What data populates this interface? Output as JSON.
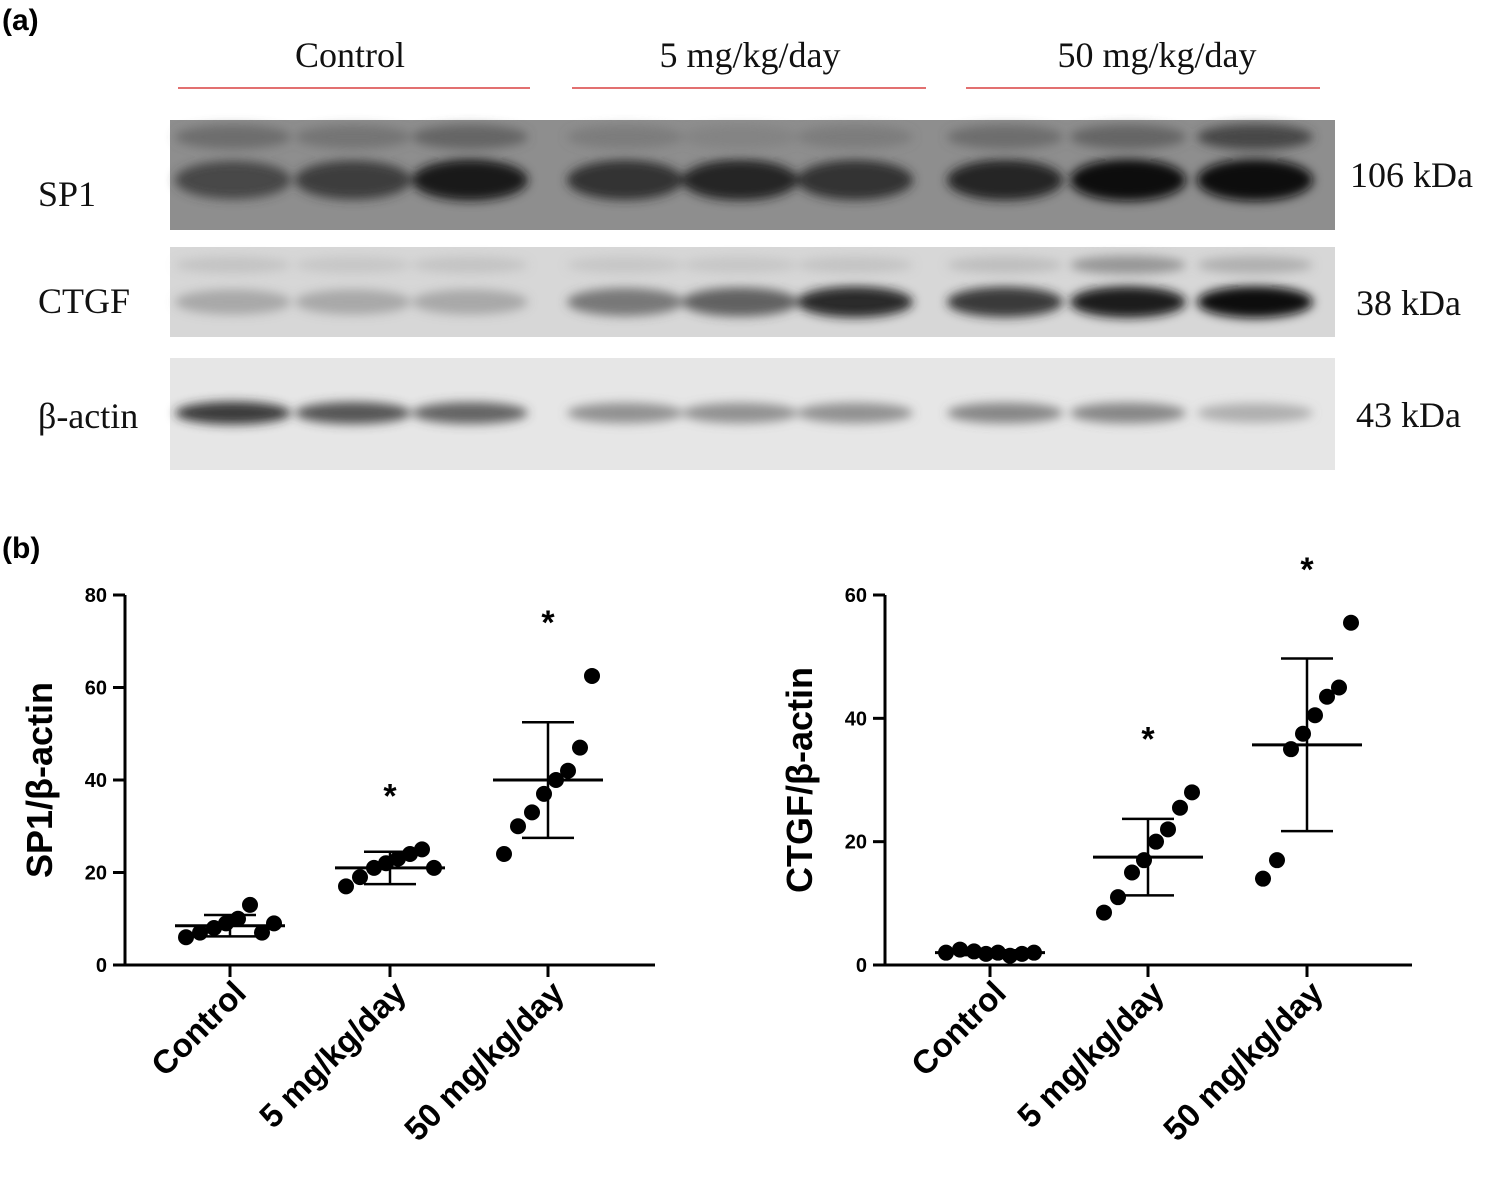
{
  "panel_a": {
    "label": "(a)",
    "groups": [
      "Control",
      "5 mg/kg/day",
      "50 mg/kg/day"
    ],
    "group_line_color": "#d94040",
    "blots": [
      {
        "protein": "SP1",
        "size": "106 kDa",
        "background": "#8e8e8e",
        "upper_band": [
          0.55,
          0.5,
          0.6,
          0.45,
          0.4,
          0.45,
          0.55,
          0.6,
          0.75
        ],
        "lower_band": [
          0.75,
          0.8,
          0.95,
          0.85,
          0.9,
          0.85,
          0.9,
          1.0,
          1.0
        ]
      },
      {
        "protein": "CTGF",
        "size": "38 kDa",
        "background": "#d7d7d7",
        "upper_band": [
          0.15,
          0.12,
          0.15,
          0.12,
          0.12,
          0.15,
          0.2,
          0.45,
          0.3
        ],
        "lower_band": [
          0.35,
          0.35,
          0.35,
          0.6,
          0.7,
          0.9,
          0.85,
          0.95,
          1.0
        ]
      },
      {
        "protein": "β-actin",
        "size": "43 kDa",
        "background": "#e6e6e6",
        "upper_band": [],
        "lower_band": [
          0.85,
          0.75,
          0.7,
          0.5,
          0.5,
          0.5,
          0.55,
          0.55,
          0.35
        ]
      }
    ]
  },
  "panel_b": {
    "label": "(b)"
  },
  "chart_data": [
    {
      "type": "scatter",
      "ylabel": "SP1/β-actin",
      "categories": [
        "Control",
        "5 mg/kg/day",
        "50 mg/kg/day"
      ],
      "ylim": [
        0,
        80
      ],
      "yticks": [
        0,
        20,
        40,
        60,
        80
      ],
      "points": [
        [
          6,
          7,
          8,
          9,
          10,
          13,
          7,
          9
        ],
        [
          17,
          19,
          21,
          22,
          23,
          24,
          25,
          21
        ],
        [
          24,
          30,
          33,
          37,
          40,
          42,
          47,
          62.5
        ]
      ],
      "mean": [
        8.5,
        21,
        40
      ],
      "sd": [
        2.3,
        3.5,
        12.5
      ],
      "significance": [
        "",
        "*",
        "*"
      ]
    },
    {
      "type": "scatter",
      "ylabel": "CTGF/β-actin",
      "categories": [
        "Control",
        "5 mg/kg/day",
        "50 mg/kg/day"
      ],
      "ylim": [
        0,
        60
      ],
      "yticks": [
        0,
        20,
        40,
        60
      ],
      "points": [
        [
          2,
          2.5,
          2.2,
          1.8,
          2,
          1.5,
          1.8,
          2
        ],
        [
          8.5,
          11,
          15,
          17,
          20,
          22,
          25.5,
          28
        ],
        [
          14,
          17,
          35,
          37.5,
          40.5,
          43.5,
          45,
          55.5
        ]
      ],
      "mean": [
        2,
        17.5,
        35.7
      ],
      "sd": [
        0.4,
        6.2,
        14
      ],
      "significance": [
        "",
        "*",
        "*"
      ]
    }
  ]
}
